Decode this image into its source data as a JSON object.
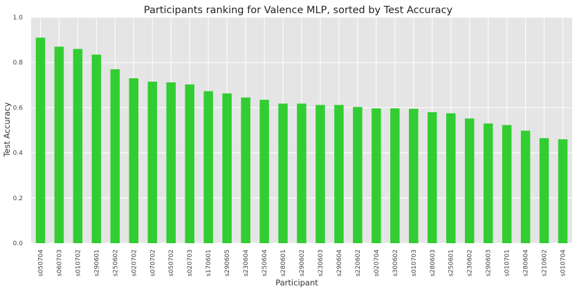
{
  "chart_data": {
    "type": "bar",
    "title": "Participants ranking for Valence MLP, sorted by Test Accuracy",
    "xlabel": "Participant",
    "ylabel": "Test Accuracy",
    "ylim": [
      0,
      1.0
    ],
    "yticks": [
      "0.0",
      "0.2",
      "0.4",
      "0.6",
      "0.8",
      "1.0"
    ],
    "grid": true,
    "bar_color": "#32cd32",
    "background_color": "#e5e5e5",
    "grid_color": "#ffffff",
    "categories": [
      "s050704",
      "s060703",
      "s010702",
      "s290601",
      "s250602",
      "s020702",
      "s070702",
      "s050702",
      "s020703",
      "s170601",
      "s290605",
      "s230604",
      "s250604",
      "s280601",
      "s290602",
      "s230603",
      "s290604",
      "s220602",
      "s020704",
      "s300602",
      "s010703",
      "s280603",
      "s250601",
      "s230602",
      "s290603",
      "s010701",
      "s280604",
      "s210602",
      "s010704"
    ],
    "values": [
      0.91,
      0.87,
      0.86,
      0.835,
      0.77,
      0.73,
      0.715,
      0.712,
      0.703,
      0.673,
      0.663,
      0.645,
      0.635,
      0.618,
      0.618,
      0.612,
      0.612,
      0.603,
      0.597,
      0.597,
      0.595,
      0.58,
      0.575,
      0.552,
      0.53,
      0.523,
      0.498,
      0.465,
      0.46
    ]
  }
}
